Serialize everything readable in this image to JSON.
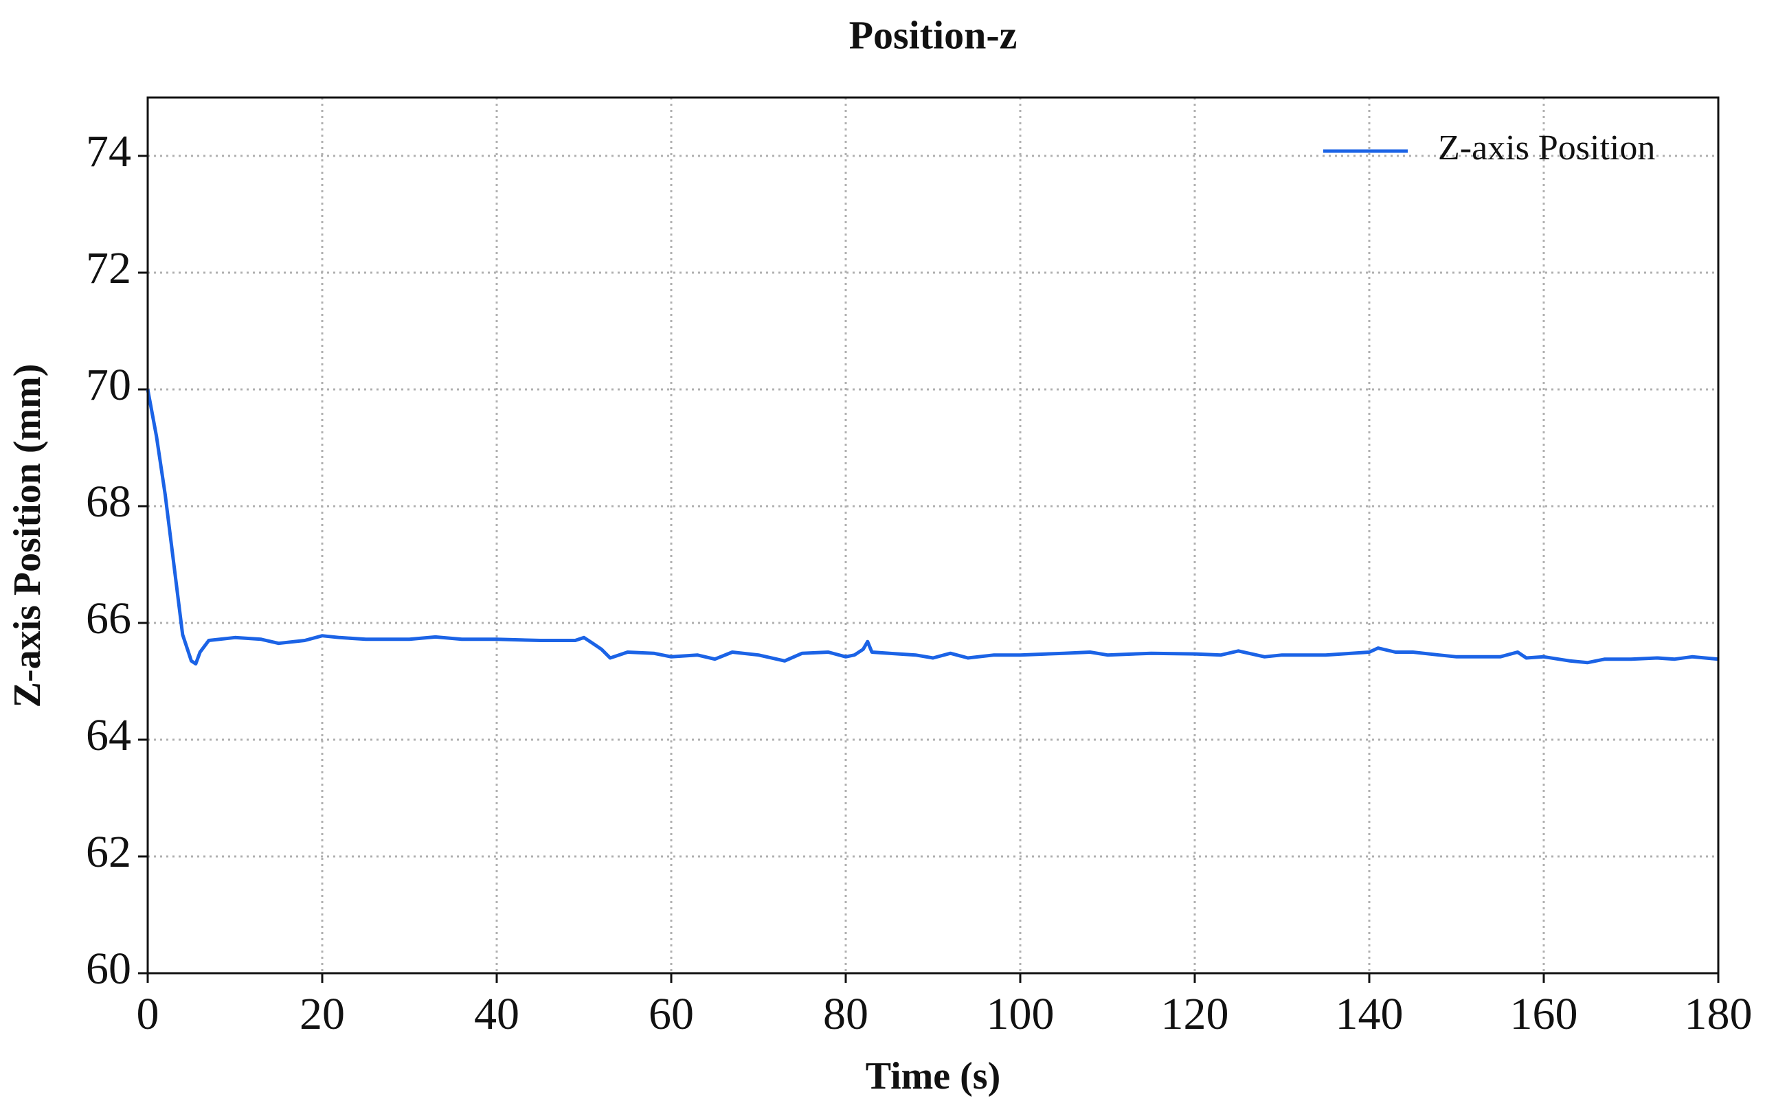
{
  "chart_data": {
    "type": "line",
    "title": "Position-z",
    "xlabel": "Time (s)",
    "ylabel": "Z-axis Position (mm)",
    "xlim": [
      0,
      180
    ],
    "xticks": [
      0,
      20,
      40,
      60,
      80,
      100,
      120,
      140,
      160,
      180
    ],
    "ylim": [
      60,
      75
    ],
    "yticks": [
      60,
      62,
      64,
      66,
      68,
      70,
      72,
      74
    ],
    "grid": true,
    "legend": "upper right",
    "x": [
      0,
      1,
      2,
      3,
      4,
      5,
      5.5,
      6,
      7,
      10,
      13,
      15,
      18,
      20,
      22,
      25,
      30,
      33,
      36,
      40,
      45,
      49,
      50,
      51,
      52,
      53,
      55,
      58,
      60,
      63,
      65,
      67,
      70,
      73,
      75,
      78,
      80,
      81,
      82,
      82.5,
      83,
      85,
      88,
      90,
      92,
      94,
      97,
      100,
      105,
      108,
      110,
      115,
      120,
      123,
      125,
      128,
      130,
      135,
      140,
      141,
      143,
      145,
      148,
      150,
      155,
      157,
      158,
      160,
      163,
      165,
      167,
      170,
      173,
      175,
      177,
      180
    ],
    "series": [
      {
        "name": "Z-axis Position",
        "color": "#1b63e6",
        "values": [
          70,
          69.2,
          68.2,
          67.0,
          65.8,
          65.35,
          65.3,
          65.5,
          65.7,
          65.75,
          65.72,
          65.65,
          65.7,
          65.78,
          65.75,
          65.72,
          65.72,
          65.76,
          65.72,
          65.72,
          65.7,
          65.7,
          65.75,
          65.65,
          65.55,
          65.4,
          65.5,
          65.48,
          65.42,
          65.45,
          65.38,
          65.5,
          65.45,
          65.35,
          65.48,
          65.5,
          65.42,
          65.45,
          65.55,
          65.68,
          65.5,
          65.48,
          65.45,
          65.4,
          65.48,
          65.4,
          65.45,
          65.45,
          65.48,
          65.5,
          65.45,
          65.48,
          65.47,
          65.45,
          65.52,
          65.42,
          65.45,
          65.45,
          65.5,
          65.57,
          65.5,
          65.5,
          65.45,
          65.42,
          65.42,
          65.5,
          65.4,
          65.42,
          65.35,
          65.32,
          65.38,
          65.38,
          65.4,
          65.38,
          65.42,
          65.38
        ]
      }
    ]
  }
}
